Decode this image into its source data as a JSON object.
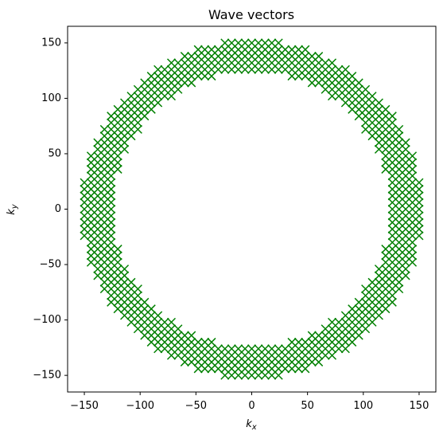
{
  "chart_data": {
    "type": "scatter",
    "title": "Wave vectors",
    "xlabel": "k_x",
    "ylabel": "k_y",
    "xlim": [
      -165,
      165
    ],
    "ylim": [
      -165,
      165
    ],
    "x_ticks": [
      "−150",
      "−100",
      "−50",
      "0",
      "50",
      "100",
      "150"
    ],
    "y_ticks": [
      "150",
      "100",
      "50",
      "0",
      "−50",
      "−100",
      "−150"
    ],
    "grid": false,
    "marker": "x",
    "marker_color": "#008000",
    "series": [
      {
        "description_of_points": "integer lattice points (kx, ky) on a grid of spacing 6 whose radius sqrt(kx^2+ky^2) lies in an annulus",
        "grid_spacing": 6,
        "r_min": 124,
        "r_max": 152
      }
    ]
  }
}
